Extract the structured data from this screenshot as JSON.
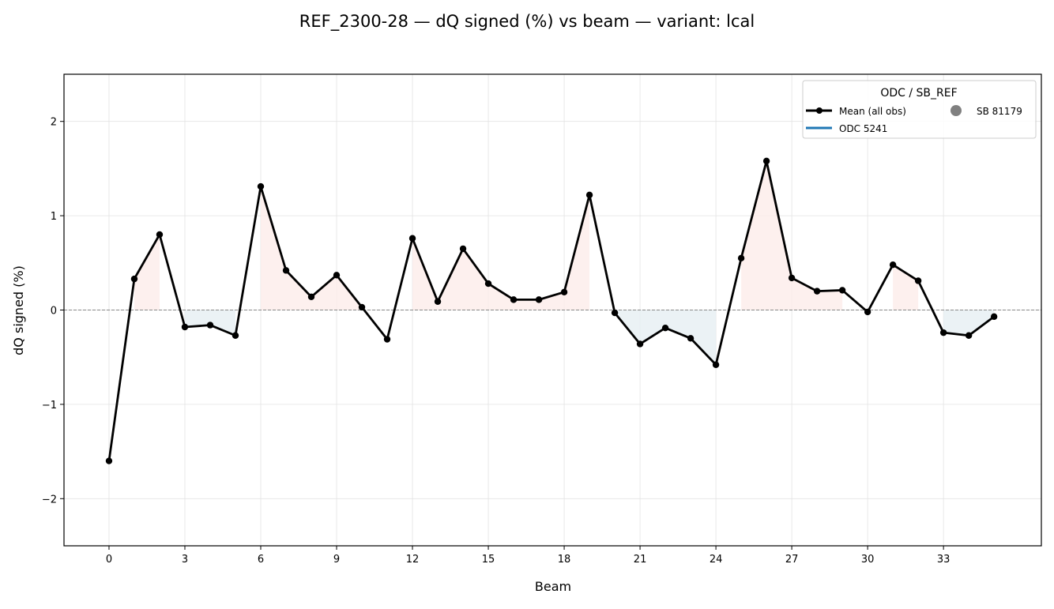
{
  "chart_data": {
    "type": "line",
    "title": "REF_2300-28  —  dQ signed (%) vs beam  —  variant: lcal",
    "xlabel": "Beam",
    "ylabel": "dQ signed (%)",
    "xlim": [
      -1.78,
      36.87
    ],
    "ylim": [
      -2.5,
      2.5
    ],
    "xticks": [
      0,
      3,
      6,
      9,
      12,
      15,
      18,
      21,
      24,
      27,
      30,
      33
    ],
    "yticks": [
      -2,
      -1,
      0,
      1,
      2
    ],
    "ytick_labels": [
      "−2",
      "−1",
      "0",
      "1",
      "2"
    ],
    "grid": true,
    "x": [
      0,
      1,
      2,
      3,
      4,
      5,
      6,
      7,
      8,
      9,
      10,
      11,
      12,
      13,
      14,
      15,
      16,
      17,
      18,
      19,
      20,
      21,
      22,
      23,
      24,
      25,
      26,
      27,
      28,
      29,
      30,
      31,
      32,
      33,
      34,
      35
    ],
    "series": [
      {
        "name": "Mean (all obs)",
        "color": "#000000",
        "values": [
          -1.6,
          0.33,
          0.8,
          -0.18,
          -0.16,
          -0.27,
          1.31,
          0.42,
          0.14,
          0.37,
          0.03,
          -0.31,
          0.76,
          0.09,
          0.65,
          0.28,
          0.11,
          0.11,
          0.19,
          1.22,
          -0.03,
          -0.36,
          -0.19,
          -0.3,
          -0.58,
          0.55,
          1.58,
          0.34,
          0.2,
          0.21,
          -0.02,
          0.48,
          0.31,
          -0.24,
          -0.27,
          -0.07
        ]
      }
    ],
    "fill_positive_color": "#fdecea",
    "fill_negative_color": "#e6eff3",
    "legend": {
      "title": "ODC / SB_REF",
      "placement": "top-right",
      "entries": [
        {
          "label": "Mean (all obs)",
          "kind": "line-marker",
          "color": "#000000"
        },
        {
          "label": "SB 81179",
          "kind": "marker",
          "color": "#808080"
        },
        {
          "label": "ODC 5241",
          "kind": "line",
          "color": "#1f77b4"
        }
      ]
    }
  }
}
